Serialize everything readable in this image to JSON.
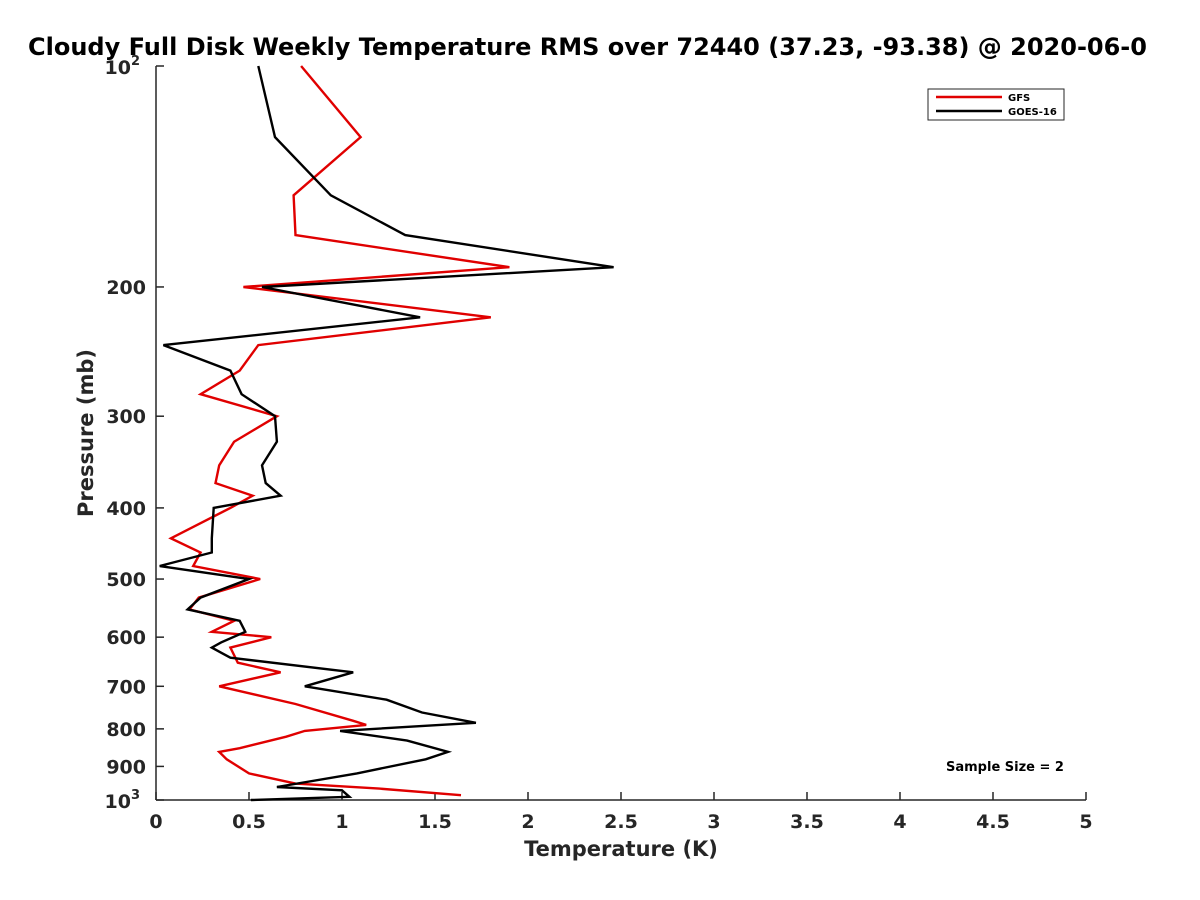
{
  "chart_data": {
    "type": "line",
    "title": "Cloudy Full Disk Weekly Temperature RMS over 72440 (37.23, -93.38) @ 2020-06-0",
    "xlabel": "Temperature (K)",
    "ylabel": "Pressure (mb)",
    "xlim": [
      0,
      5
    ],
    "ylim": [
      100,
      1000
    ],
    "y_scale": "log",
    "y_reversed": true,
    "x_ticks": [
      "0",
      "0.5",
      "1",
      "1.5",
      "2",
      "2.5",
      "3",
      "3.5",
      "4",
      "4.5",
      "5"
    ],
    "y_ticks": [
      {
        "value": 100,
        "base": "10",
        "exp": "2"
      },
      {
        "value": 200,
        "label": "200"
      },
      {
        "value": 300,
        "label": "300"
      },
      {
        "value": 400,
        "label": "400"
      },
      {
        "value": 500,
        "label": "500"
      },
      {
        "value": 600,
        "label": "600"
      },
      {
        "value": 700,
        "label": "700"
      },
      {
        "value": 800,
        "label": "800"
      },
      {
        "value": 900,
        "label": "900"
      },
      {
        "value": 1000,
        "base": "10",
        "exp": "3"
      }
    ],
    "annotation": "Sample Size = 2",
    "legend_position": "top-right",
    "series": [
      {
        "name": "GFS",
        "color": "#e00000",
        "points": [
          [
            0.78,
            100
          ],
          [
            1.1,
            125
          ],
          [
            0.74,
            150
          ],
          [
            0.75,
            170
          ],
          [
            1.9,
            188
          ],
          [
            0.47,
            200
          ],
          [
            1.8,
            220
          ],
          [
            0.55,
            240
          ],
          [
            0.45,
            260
          ],
          [
            0.24,
            280
          ],
          [
            0.65,
            300
          ],
          [
            0.42,
            325
          ],
          [
            0.34,
            350
          ],
          [
            0.32,
            370
          ],
          [
            0.52,
            385
          ],
          [
            0.4,
            400
          ],
          [
            0.08,
            440
          ],
          [
            0.24,
            460
          ],
          [
            0.2,
            480
          ],
          [
            0.56,
            500
          ],
          [
            0.23,
            530
          ],
          [
            0.18,
            550
          ],
          [
            0.42,
            570
          ],
          [
            0.3,
            590
          ],
          [
            0.62,
            600
          ],
          [
            0.4,
            620
          ],
          [
            0.44,
            650
          ],
          [
            0.67,
            670
          ],
          [
            0.34,
            700
          ],
          [
            0.75,
            740
          ],
          [
            1.06,
            780
          ],
          [
            1.13,
            790
          ],
          [
            0.8,
            805
          ],
          [
            0.7,
            820
          ],
          [
            0.45,
            850
          ],
          [
            0.34,
            860
          ],
          [
            0.38,
            880
          ],
          [
            0.5,
            920
          ],
          [
            0.75,
            950
          ],
          [
            1.2,
            965
          ],
          [
            1.64,
            985
          ]
        ]
      },
      {
        "name": "GOES-16",
        "color": "#000000",
        "points": [
          [
            0.55,
            100
          ],
          [
            0.64,
            125
          ],
          [
            0.94,
            150
          ],
          [
            1.34,
            170
          ],
          [
            2.46,
            188
          ],
          [
            0.57,
            200
          ],
          [
            1.42,
            220
          ],
          [
            0.04,
            240
          ],
          [
            0.4,
            260
          ],
          [
            0.46,
            280
          ],
          [
            0.64,
            300
          ],
          [
            0.65,
            325
          ],
          [
            0.57,
            350
          ],
          [
            0.59,
            370
          ],
          [
            0.67,
            385
          ],
          [
            0.31,
            400
          ],
          [
            0.3,
            440
          ],
          [
            0.3,
            460
          ],
          [
            0.02,
            480
          ],
          [
            0.5,
            500
          ],
          [
            0.24,
            530
          ],
          [
            0.17,
            550
          ],
          [
            0.45,
            570
          ],
          [
            0.48,
            590
          ],
          [
            0.35,
            610
          ],
          [
            0.3,
            620
          ],
          [
            0.35,
            630
          ],
          [
            0.4,
            640
          ],
          [
            1.06,
            670
          ],
          [
            0.8,
            700
          ],
          [
            1.24,
            730
          ],
          [
            1.43,
            760
          ],
          [
            1.72,
            785
          ],
          [
            0.99,
            805
          ],
          [
            1.35,
            830
          ],
          [
            1.57,
            860
          ],
          [
            1.45,
            880
          ],
          [
            1.08,
            920
          ],
          [
            0.65,
            960
          ],
          [
            1.0,
            970
          ],
          [
            1.04,
            990
          ],
          [
            0.51,
            1000
          ]
        ]
      }
    ]
  }
}
